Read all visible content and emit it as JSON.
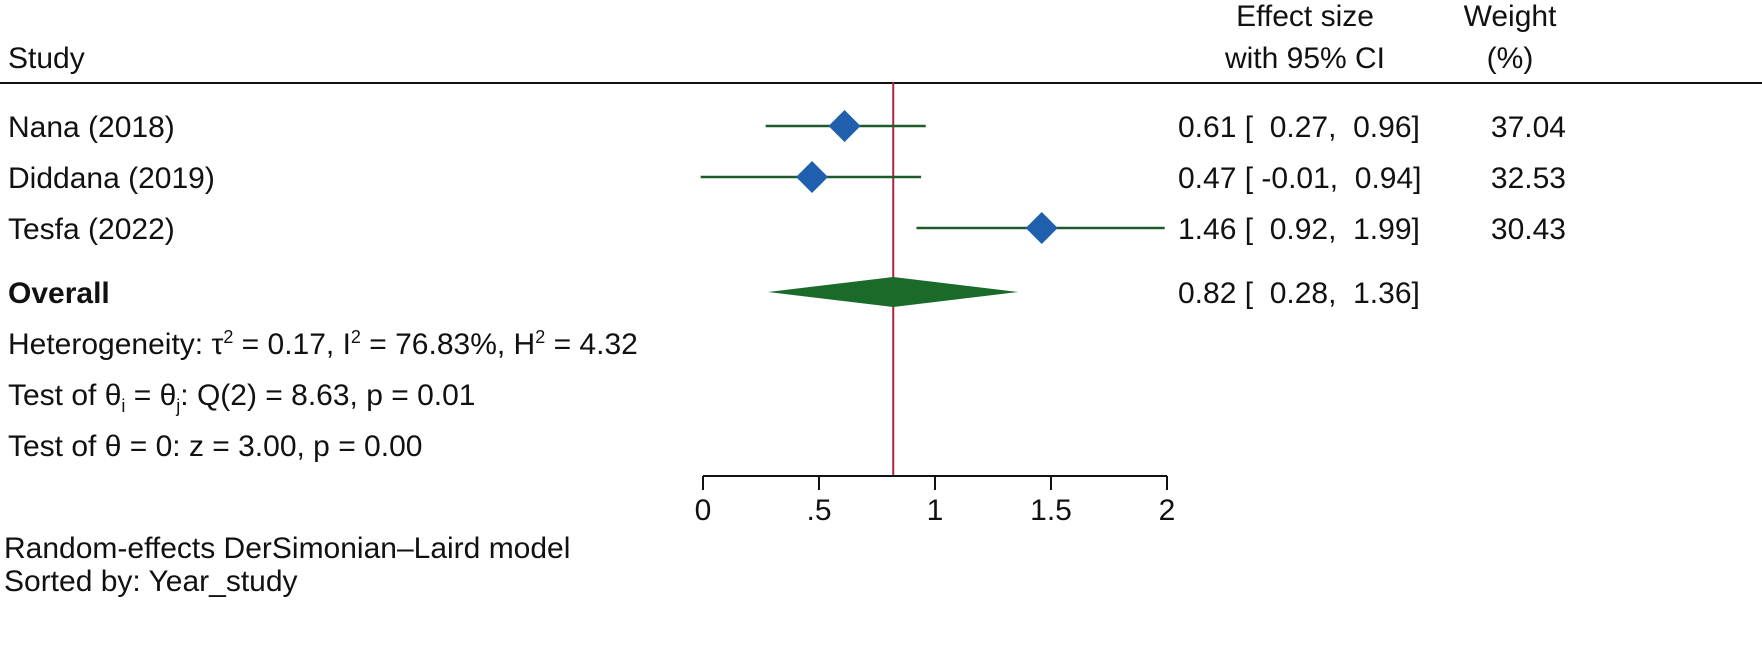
{
  "header": {
    "study_label": "Study",
    "effect_line1": "Effect size",
    "effect_line2": "with 95% CI",
    "weight_line1": "Weight",
    "weight_line2": "(%)"
  },
  "overall_label": "Overall",
  "overall_ci_text": "0.82 [  0.28,  1.36]",
  "heterogeneity": {
    "prefix": "Heterogeneity: τ",
    "tau_sup": "2",
    "part2": " = 0.17, I",
    "i_sup": "2",
    "part3": " = 76.83%, H",
    "h_sup": "2",
    "part4": " = 4.32"
  },
  "test1": {
    "prefix": "Test of θ",
    "sub_i": "i",
    "mid": " = θ",
    "sub_j": "j",
    "suffix": ": Q(2) = 8.63, p = 0.01"
  },
  "test2": "Test of θ = 0: z = 3.00, p = 0.00",
  "footer": {
    "model": "Random-effects DerSimonian–Laird model",
    "sorted": "Sorted by: Year_study"
  },
  "colors": {
    "study_marker": "#1f5fae",
    "ci_line": "#1e5a2a",
    "overall_diamond": "#1a6b2a",
    "reference_line": "#b0243a",
    "axis": "#111111"
  },
  "chart_data": {
    "type": "scatter",
    "subtype": "forest-plot",
    "xlim": [
      0,
      2
    ],
    "ticks": [
      {
        "value": 0,
        "label": "0"
      },
      {
        "value": 0.5,
        "label": ".5"
      },
      {
        "value": 1,
        "label": "1"
      },
      {
        "value": 1.5,
        "label": "1.5"
      },
      {
        "value": 2,
        "label": "2"
      }
    ],
    "reference_value": 0.82,
    "studies": [
      {
        "name": "Nana (2018)",
        "effect": 0.61,
        "lower": 0.27,
        "upper": 0.96,
        "weight": 37.04,
        "ci_text": "0.61 [  0.27,  0.96]",
        "weight_text": "37.04"
      },
      {
        "name": "Diddana (2019)",
        "effect": 0.47,
        "lower": -0.01,
        "upper": 0.94,
        "weight": 32.53,
        "ci_text": "0.47 [ -0.01,  0.94]",
        "weight_text": "32.53"
      },
      {
        "name": "Tesfa (2022)",
        "effect": 1.46,
        "lower": 0.92,
        "upper": 1.99,
        "weight": 30.43,
        "ci_text": "1.46 [  0.92,  1.99]",
        "weight_text": "30.43"
      }
    ],
    "overall": {
      "effect": 0.82,
      "lower": 0.28,
      "upper": 1.36
    }
  }
}
